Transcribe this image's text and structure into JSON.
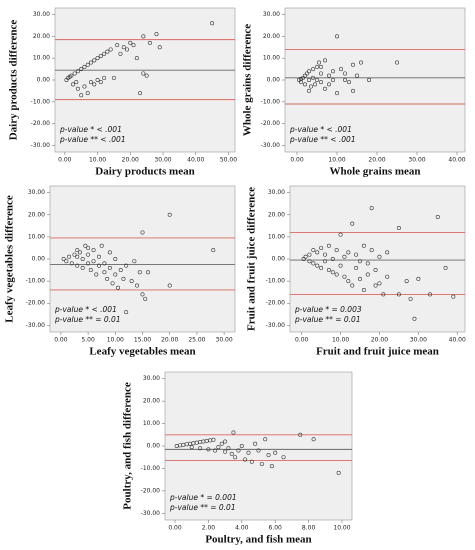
{
  "chart_data": [
    {
      "type": "scatter",
      "x_label": "Dairy products mean",
      "y_label": "Dairy products difference",
      "annotations": [
        "p-value * < .001",
        "p-value ** < .001"
      ],
      "x": [
        0.5,
        1,
        1.5,
        2,
        2.5,
        3,
        3.5,
        4,
        5,
        6,
        6,
        7,
        7,
        8,
        9,
        9,
        10,
        11,
        11,
        12,
        12,
        13,
        14,
        15,
        16,
        17,
        18,
        19,
        20,
        21,
        22,
        23,
        24,
        24,
        25,
        26,
        28,
        29,
        45,
        5,
        4,
        8,
        10
      ],
      "values": [
        0,
        1,
        1.5,
        2,
        -2,
        3,
        -1,
        4,
        5,
        6,
        -3,
        7,
        -6,
        8,
        9,
        -2,
        10,
        11,
        -1,
        12,
        1,
        13,
        14,
        1,
        16,
        12,
        15,
        14,
        17,
        16,
        10,
        -6,
        20,
        3,
        2,
        17,
        21,
        15,
        26,
        -7,
        -4,
        -1,
        0
      ],
      "mean_difference": 4.5,
      "upper_limit": 18.5,
      "lower_limit": -9,
      "point_color": "#333333",
      "mean_color": "#666666",
      "limit_color": "#d9685e",
      "xlim": [
        -3,
        52
      ],
      "ylim": [
        -33,
        33
      ],
      "xticks": [
        {
          "value": 0,
          "label": "0.00"
        },
        {
          "value": 10,
          "label": "10.00"
        },
        {
          "value": 20,
          "label": "20.00"
        },
        {
          "value": 30,
          "label": "30.00"
        },
        {
          "value": 40,
          "label": "40.00"
        },
        {
          "value": 50,
          "label": "50.00"
        }
      ],
      "yticks": [
        {
          "value": 30,
          "label": "30.00"
        },
        {
          "value": 20,
          "label": "20.00"
        },
        {
          "value": 10,
          "label": "10.00"
        },
        {
          "value": 0,
          "label": "0.00"
        },
        {
          "value": -10,
          "label": "-10.00"
        },
        {
          "value": -20,
          "label": "-20.00"
        },
        {
          "value": -30,
          "label": "-30.00"
        }
      ]
    },
    {
      "type": "scatter",
      "x_label": "Whole grains mean",
      "y_label": "Whole grains difference",
      "annotations": [
        "p-value * < .001",
        "p-value ** < .001"
      ],
      "x": [
        0.5,
        1,
        1,
        1.5,
        2,
        2,
        2.5,
        3,
        3,
        3.5,
        4,
        4,
        4.5,
        5,
        5,
        5.5,
        6,
        6,
        7,
        7,
        8,
        8,
        9,
        9,
        10,
        10,
        11,
        12,
        12,
        13,
        14,
        14,
        15,
        16,
        18,
        25,
        3,
        6
      ],
      "values": [
        0,
        0.5,
        -1,
        1,
        2,
        -2,
        3,
        0,
        4,
        -3,
        5,
        1,
        -2,
        6,
        0,
        8,
        -1,
        3,
        9,
        -4,
        2,
        -2,
        4,
        0,
        20,
        -6,
        5,
        0,
        3,
        -1,
        7,
        -5,
        2,
        8,
        0,
        8,
        -5,
        6
      ],
      "mean_difference": 1,
      "upper_limit": 14,
      "lower_limit": -11,
      "point_color": "#333333",
      "mean_color": "#666666",
      "limit_color": "#d9685e",
      "xlim": [
        -3,
        42
      ],
      "ylim": [
        -33,
        33
      ],
      "xticks": [
        {
          "value": 0,
          "label": "0.00"
        },
        {
          "value": 10,
          "label": "10.00"
        },
        {
          "value": 20,
          "label": "20.00"
        },
        {
          "value": 30,
          "label": "30.00"
        },
        {
          "value": 40,
          "label": "40.00"
        }
      ],
      "yticks": [
        {
          "value": 30,
          "label": "30.00"
        },
        {
          "value": 20,
          "label": "20.00"
        },
        {
          "value": 10,
          "label": "10.00"
        },
        {
          "value": 0,
          "label": "0.00"
        },
        {
          "value": -10,
          "label": "-10.00"
        },
        {
          "value": -20,
          "label": "-20.00"
        },
        {
          "value": -30,
          "label": "-30.00"
        }
      ]
    },
    {
      "type": "scatter",
      "x_label": "Leafy vegetables mean",
      "y_label": "Leafy vegetables difference",
      "annotations": [
        "p-value * < .001",
        "p-value ** = 0.01"
      ],
      "x": [
        0.5,
        1,
        1.5,
        2,
        2.5,
        3,
        3,
        3.5,
        4,
        4,
        4.5,
        5,
        5,
        5.5,
        6,
        6,
        6.5,
        7,
        7,
        7.5,
        8,
        8,
        8.5,
        9,
        9,
        9.5,
        10,
        10,
        10.5,
        11,
        11.5,
        12,
        12,
        13,
        13.5,
        14,
        14.5,
        15,
        15,
        15.5,
        16,
        20,
        20,
        28,
        3,
        5
      ],
      "values": [
        0,
        -1,
        1,
        -2,
        2,
        -3,
        1,
        3,
        -4,
        0,
        6,
        -2,
        2,
        -5,
        -1,
        4,
        -7,
        -3,
        1,
        6,
        -6,
        -2,
        -9,
        -4,
        3,
        -11,
        -7,
        0,
        -13,
        -5,
        -9,
        -24,
        -3,
        -10,
        -1,
        -12,
        -6,
        12,
        -16,
        -18,
        -6,
        20,
        -12,
        4,
        4,
        5
      ],
      "mean_difference": -2.5,
      "upper_limit": 9.5,
      "lower_limit": -14,
      "point_color": "#333333",
      "mean_color": "#666666",
      "limit_color": "#d9685e",
      "xlim": [
        -2,
        32
      ],
      "ylim": [
        -33,
        33
      ],
      "xticks": [
        {
          "value": 0,
          "label": "0.00"
        },
        {
          "value": 5,
          "label": "5.00"
        },
        {
          "value": 10,
          "label": "10.00"
        },
        {
          "value": 15,
          "label": "15.00"
        },
        {
          "value": 20,
          "label": "20.00"
        },
        {
          "value": 25,
          "label": "25.00"
        },
        {
          "value": 30,
          "label": "30.00"
        }
      ],
      "yticks": [
        {
          "value": 30,
          "label": "30.00"
        },
        {
          "value": 20,
          "label": "20.00"
        },
        {
          "value": 10,
          "label": "10.00"
        },
        {
          "value": 0,
          "label": "0.00"
        },
        {
          "value": -10,
          "label": "-10.00"
        },
        {
          "value": -20,
          "label": "-20.00"
        },
        {
          "value": -30,
          "label": "-30.00"
        }
      ]
    },
    {
      "type": "scatter",
      "x_label": "Fruit and fruit juice mean",
      "y_label": "Fruit and fruit juice difference",
      "annotations": [
        "p-value * = 0.003",
        "p-value ** = 0.01"
      ],
      "x": [
        0.5,
        1,
        2,
        2,
        3,
        3,
        4,
        4,
        5,
        5,
        6,
        6,
        7,
        7,
        8,
        8,
        9,
        9,
        10,
        10,
        11,
        11,
        12,
        12,
        13,
        13,
        14,
        14,
        15,
        15,
        16,
        16,
        17,
        17,
        18,
        18,
        19,
        19,
        20,
        20,
        21,
        22,
        22,
        25,
        25,
        27,
        28,
        29,
        30,
        33,
        35,
        37,
        39
      ],
      "values": [
        0,
        1,
        -1,
        2,
        4,
        -2,
        -3,
        3,
        5,
        -4,
        -1,
        2,
        6,
        -5,
        -6,
        0,
        -7,
        4,
        11,
        -3,
        -8,
        1,
        -10,
        3,
        16,
        -12,
        -4,
        2,
        -9,
        -1,
        6,
        -14,
        -2,
        -7,
        23,
        4,
        -12,
        -5,
        1,
        -11,
        -16,
        -8,
        3,
        14,
        -16,
        -10,
        -18,
        -27,
        -9,
        -16,
        19,
        -4,
        -17
      ],
      "mean_difference": -0.5,
      "upper_limit": 12,
      "lower_limit": -16,
      "point_color": "#333333",
      "mean_color": "#666666",
      "limit_color": "#d9685e",
      "xlim": [
        -3,
        42
      ],
      "ylim": [
        -33,
        33
      ],
      "xticks": [
        {
          "value": 0,
          "label": "0.00"
        },
        {
          "value": 10,
          "label": "10.00"
        },
        {
          "value": 20,
          "label": "20.00"
        },
        {
          "value": 30,
          "label": "30.00"
        },
        {
          "value": 40,
          "label": "40.00"
        }
      ],
      "yticks": [
        {
          "value": 30,
          "label": "30.00"
        },
        {
          "value": 20,
          "label": "20.00"
        },
        {
          "value": 10,
          "label": "10.00"
        },
        {
          "value": 0,
          "label": "0.00"
        },
        {
          "value": -10,
          "label": "-10.00"
        },
        {
          "value": -20,
          "label": "-20.00"
        },
        {
          "value": -30,
          "label": "-30.00"
        }
      ]
    },
    {
      "type": "scatter",
      "x_label": "Poultry, and fish mean",
      "y_label": "Poultry, and fish difference",
      "annotations": [
        "p-value * = 0.001",
        "p-value ** = 0.01"
      ],
      "x": [
        0.1,
        0.3,
        0.5,
        0.7,
        0.9,
        1.1,
        1.3,
        1.5,
        1.7,
        1.9,
        2.1,
        2.3,
        1,
        1.5,
        2,
        2.4,
        2.6,
        2.8,
        3,
        3.2,
        3.4,
        3.6,
        3.8,
        4,
        4.2,
        4.4,
        4.6,
        4.8,
        5,
        5.2,
        5.4,
        5.6,
        5.8,
        6,
        6.5,
        7.5,
        8.3,
        9.8,
        3.5,
        3
      ],
      "values": [
        0,
        0.3,
        0.5,
        0.8,
        1,
        1.2,
        1.5,
        1.8,
        2,
        2.3,
        2.5,
        2.8,
        -0.5,
        -1,
        -1.5,
        -2,
        -0.5,
        1,
        -2.5,
        -1,
        -3.5,
        -5,
        -2,
        0,
        -6,
        -3,
        -7,
        1,
        -2,
        -8,
        3,
        -4,
        -9,
        -3,
        -5,
        5,
        3,
        -12,
        6,
        2
      ],
      "mean_difference": -1.5,
      "upper_limit": 5,
      "lower_limit": -6.5,
      "point_color": "#333333",
      "mean_color": "#666666",
      "limit_color": "#d9685e",
      "xlim": [
        -0.6,
        10.6
      ],
      "ylim": [
        -33,
        33
      ],
      "xticks": [
        {
          "value": 0,
          "label": "0.00"
        },
        {
          "value": 2,
          "label": "2.00"
        },
        {
          "value": 4,
          "label": "4.00"
        },
        {
          "value": 6,
          "label": "6.00"
        },
        {
          "value": 8,
          "label": "8.00"
        },
        {
          "value": 10,
          "label": "10.00"
        }
      ],
      "yticks": [
        {
          "value": 30,
          "label": "30.00"
        },
        {
          "value": 20,
          "label": "20.00"
        },
        {
          "value": 10,
          "label": "10.00"
        },
        {
          "value": 0,
          "label": "0.00"
        },
        {
          "value": -10,
          "label": "-10.00"
        },
        {
          "value": -20,
          "label": "-20.00"
        },
        {
          "value": -30,
          "label": "-30.00"
        }
      ]
    }
  ]
}
